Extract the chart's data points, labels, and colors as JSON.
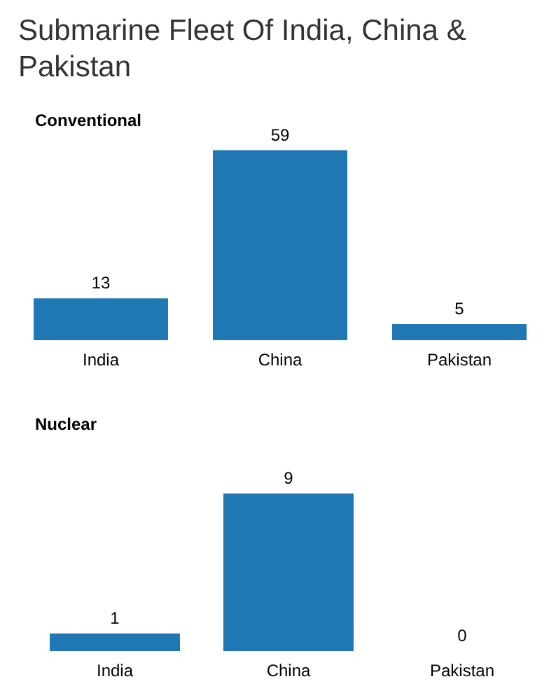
{
  "chart_data": [
    {
      "type": "bar",
      "title": "Submarine Fleet Of India, China & Pakistan",
      "subtitle": "Conventional",
      "categories": [
        "India",
        "China",
        "Pakistan"
      ],
      "values": [
        13,
        59,
        5
      ],
      "color": "#1f77b4",
      "data_labels": true
    },
    {
      "type": "bar",
      "title": "Nuclear",
      "categories": [
        "India",
        "China",
        "Pakistan"
      ],
      "values": [
        1,
        9,
        0
      ],
      "color": "#1f77b4",
      "data_labels": true
    }
  ]
}
